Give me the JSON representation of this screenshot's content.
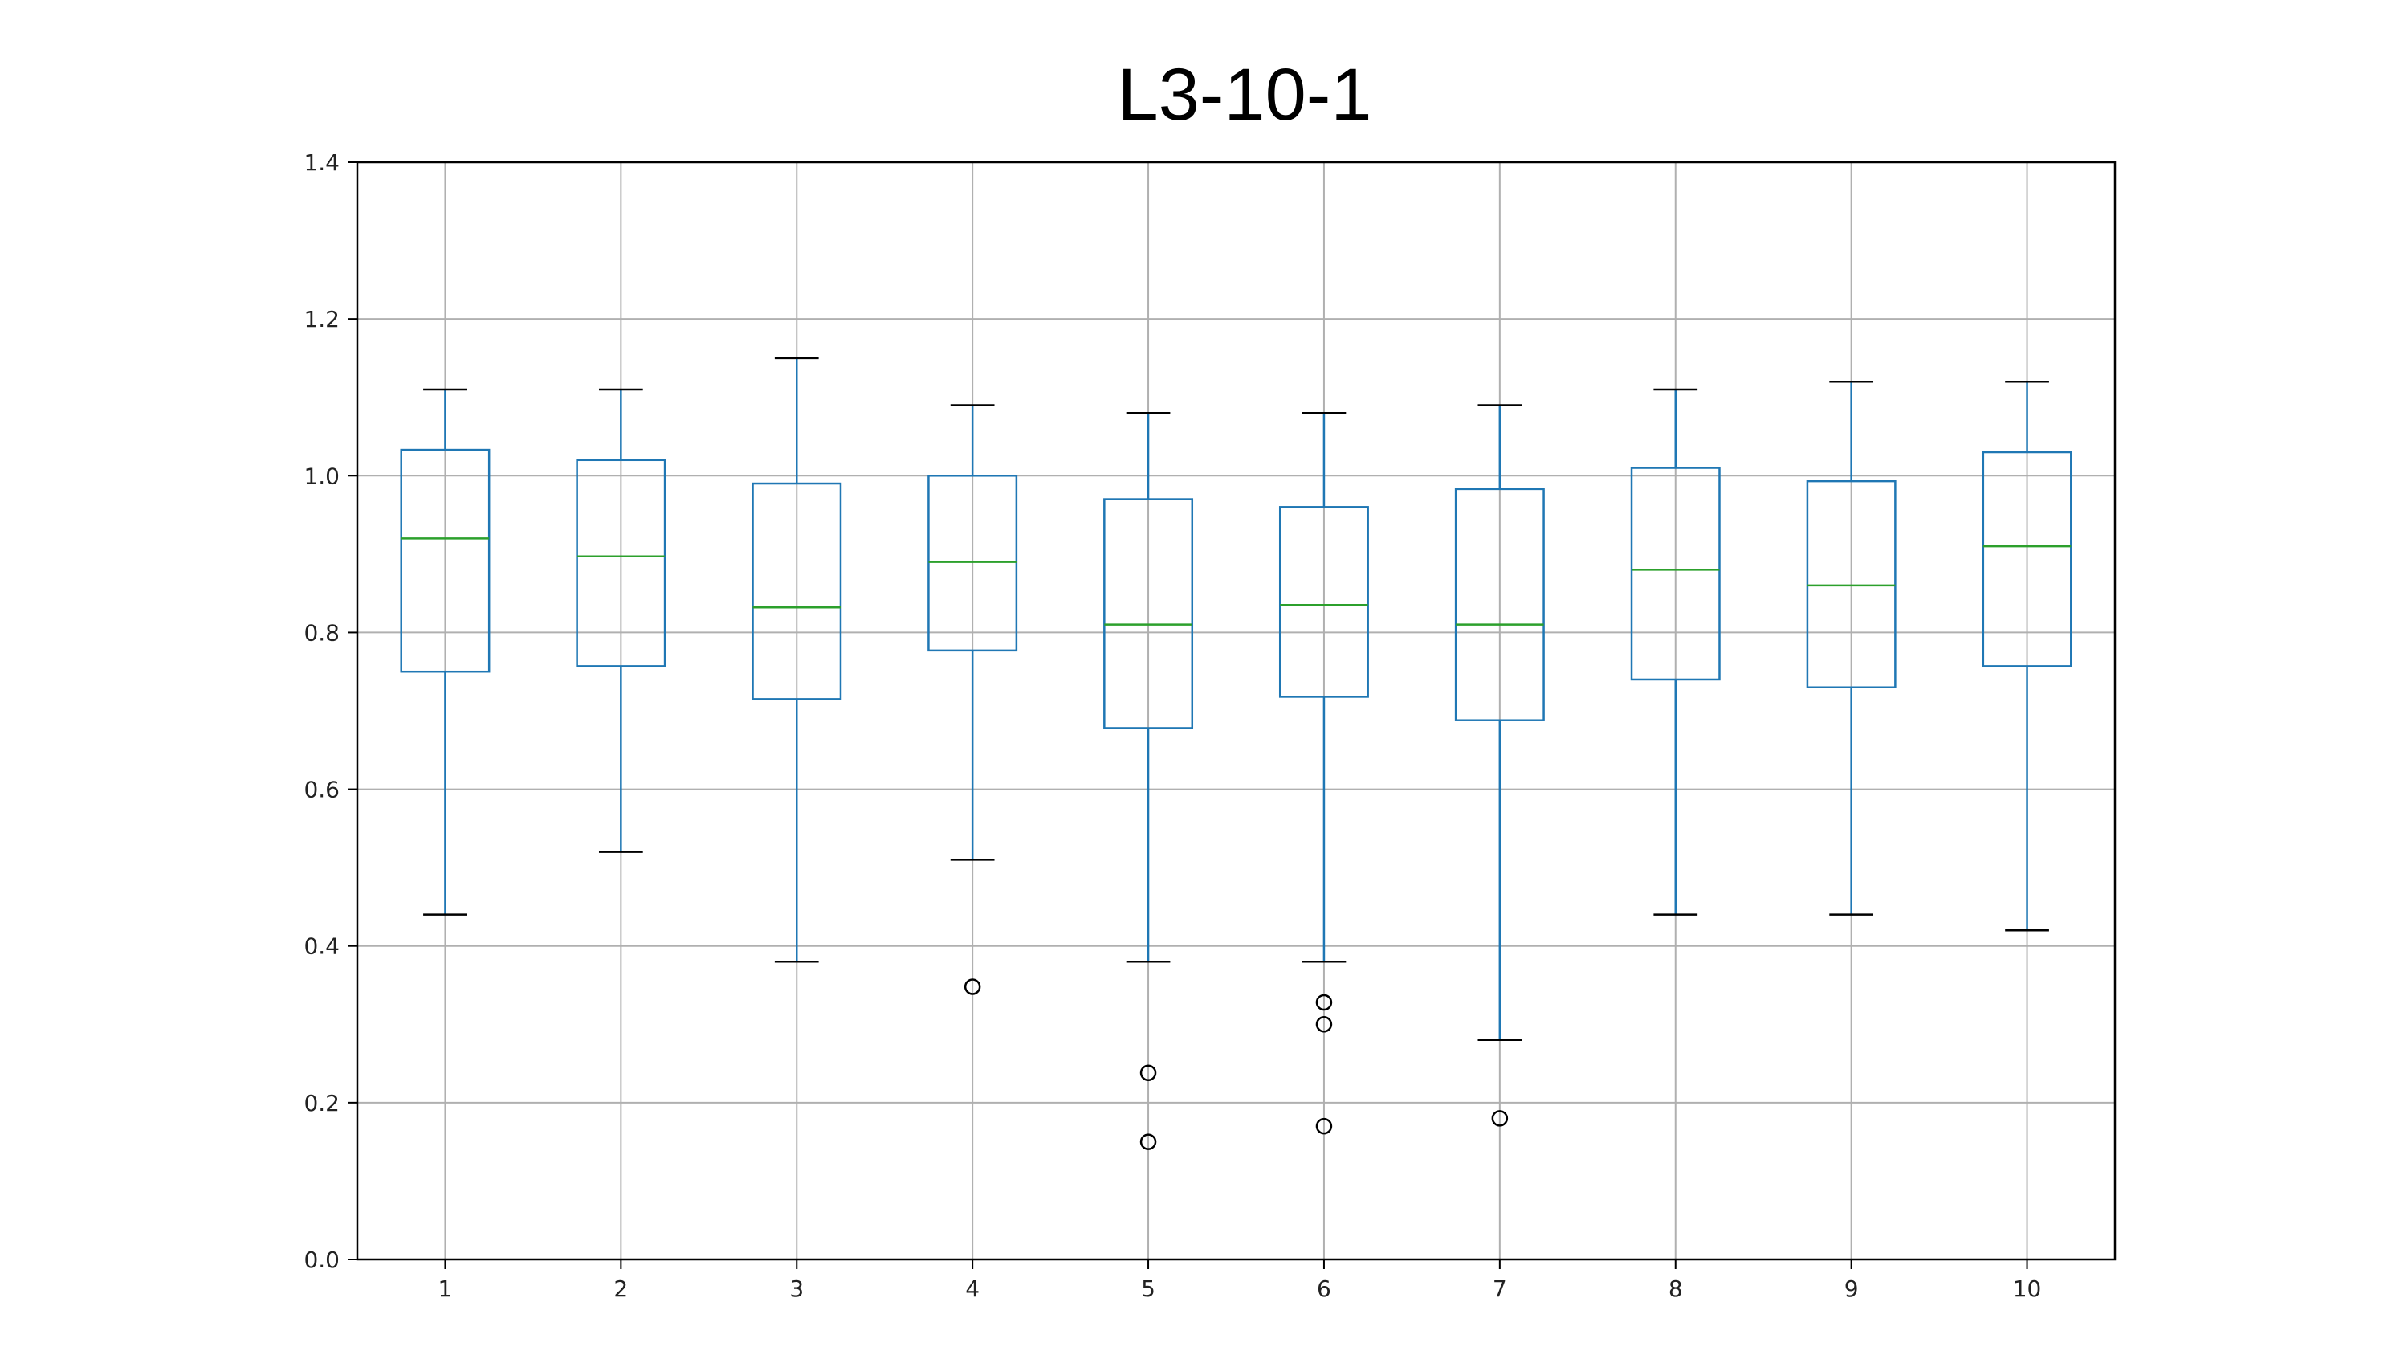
{
  "chart_data": {
    "type": "box",
    "title": "L3-10-1",
    "xlabel": "",
    "ylabel": "",
    "categories": [
      "1",
      "2",
      "3",
      "4",
      "5",
      "6",
      "7",
      "8",
      "9",
      "10"
    ],
    "ylim": [
      0.0,
      1.4
    ],
    "yticks": [
      "0.0",
      "0.2",
      "0.4",
      "0.6",
      "0.8",
      "1.0",
      "1.2",
      "1.4"
    ],
    "grid": true,
    "boxes": [
      {
        "label": "1",
        "whisker_low": 0.44,
        "q1": 0.75,
        "median": 0.92,
        "q3": 1.033,
        "whisker_high": 1.11,
        "fliers": []
      },
      {
        "label": "2",
        "whisker_low": 0.52,
        "q1": 0.757,
        "median": 0.897,
        "q3": 1.02,
        "whisker_high": 1.11,
        "fliers": []
      },
      {
        "label": "3",
        "whisker_low": 0.38,
        "q1": 0.715,
        "median": 0.832,
        "q3": 0.99,
        "whisker_high": 1.15,
        "fliers": []
      },
      {
        "label": "4",
        "whisker_low": 0.51,
        "q1": 0.777,
        "median": 0.89,
        "q3": 1.0,
        "whisker_high": 1.09,
        "fliers": [
          0.348
        ]
      },
      {
        "label": "5",
        "whisker_low": 0.38,
        "q1": 0.678,
        "median": 0.81,
        "q3": 0.97,
        "whisker_high": 1.08,
        "fliers": [
          0.238,
          0.15
        ]
      },
      {
        "label": "6",
        "whisker_low": 0.38,
        "q1": 0.718,
        "median": 0.835,
        "q3": 0.96,
        "whisker_high": 1.08,
        "fliers": [
          0.328,
          0.3,
          0.17
        ]
      },
      {
        "label": "7",
        "whisker_low": 0.28,
        "q1": 0.688,
        "median": 0.81,
        "q3": 0.983,
        "whisker_high": 1.09,
        "fliers": [
          0.18
        ]
      },
      {
        "label": "8",
        "whisker_low": 0.44,
        "q1": 0.74,
        "median": 0.88,
        "q3": 1.01,
        "whisker_high": 1.11,
        "fliers": []
      },
      {
        "label": "9",
        "whisker_low": 0.44,
        "q1": 0.73,
        "median": 0.86,
        "q3": 0.993,
        "whisker_high": 1.12,
        "fliers": []
      },
      {
        "label": "10",
        "whisker_low": 0.42,
        "q1": 0.757,
        "median": 0.91,
        "q3": 1.03,
        "whisker_high": 1.12,
        "fliers": []
      }
    ],
    "colors": {
      "box": "#1f77b4",
      "median": "#2ca02c",
      "cap": "#000000",
      "grid": "#b0b0b0",
      "flier": "#000000"
    }
  }
}
